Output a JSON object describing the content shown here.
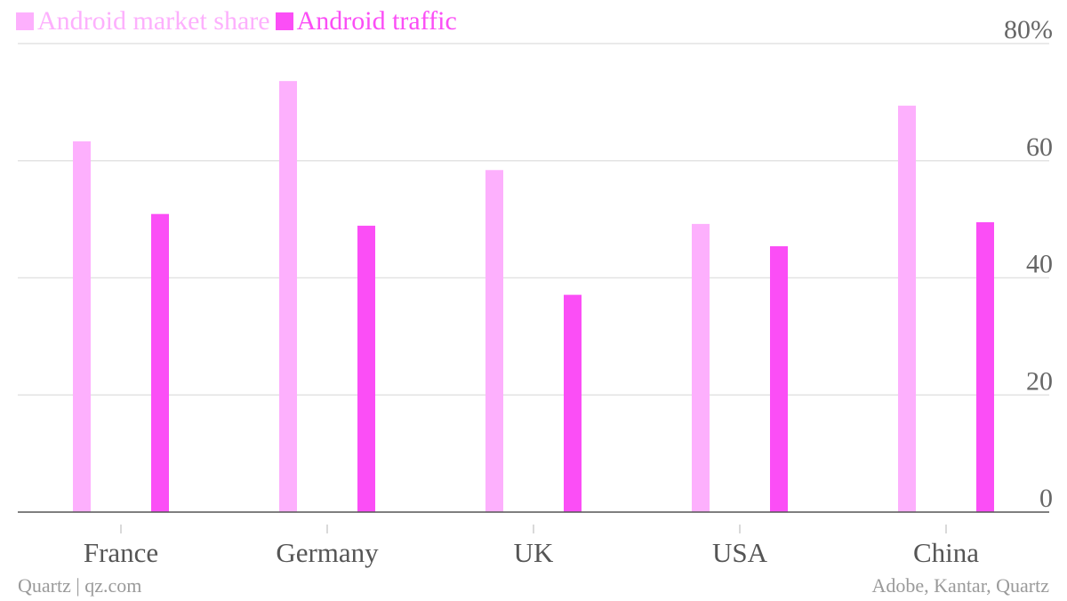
{
  "chart_data": {
    "type": "bar",
    "categories": [
      "France",
      "Germany",
      "UK",
      "USA",
      "China"
    ],
    "series": [
      {
        "name": "Android market share",
        "color": "#fdb0fd",
        "values": [
          63.3,
          73.6,
          58.4,
          49.2,
          69.4
        ]
      },
      {
        "name": "Android traffic",
        "color": "#fb4ef6",
        "values": [
          50.9,
          48.9,
          37.1,
          45.4,
          49.5
        ]
      }
    ],
    "ylim": [
      0,
      80
    ],
    "yticks": [
      {
        "value": 0,
        "label": "0"
      },
      {
        "value": 20,
        "label": "20"
      },
      {
        "value": 40,
        "label": "40"
      },
      {
        "value": 60,
        "label": "60"
      },
      {
        "value": 80,
        "label": "80%"
      }
    ],
    "grid": true,
    "legend_position": "top-left",
    "y_axis_position": "right"
  },
  "footer": {
    "left": "Quartz | qz.com",
    "right": "Adobe, Kantar, Quartz"
  }
}
